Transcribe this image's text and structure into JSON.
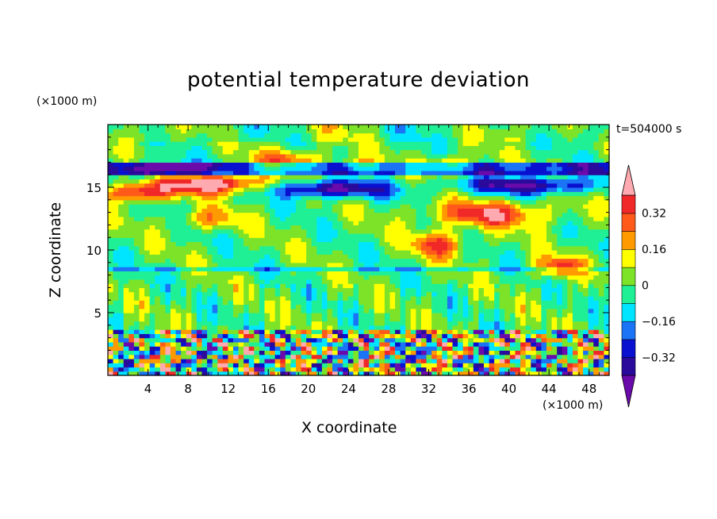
{
  "chart_data": {
    "type": "heatmap",
    "title": "potential temperature deviation",
    "xlabel": "X coordinate",
    "ylabel": "Z coordinate",
    "x_unit": "(×1000 m)",
    "z_unit": "(×1000 m)",
    "time_label": "t=504000 s",
    "xlim": [
      0,
      50
    ],
    "ylim": [
      0,
      20
    ],
    "x_ticks": [
      "4",
      "8",
      "12",
      "16",
      "20",
      "24",
      "28",
      "32",
      "36",
      "40",
      "44",
      "48"
    ],
    "y_ticks": [
      "5",
      "10",
      "15"
    ],
    "colorbar": {
      "labels": [
        "0.32",
        "0.16",
        "0",
        "−0.16",
        "−0.32"
      ],
      "label_values": [
        0.32,
        0.16,
        0,
        -0.16,
        -0.32
      ],
      "levels": [
        -0.4,
        -0.32,
        -0.24,
        -0.16,
        -0.08,
        0,
        0.08,
        0.16,
        0.24,
        0.32,
        0.4
      ],
      "colors": [
        "#6a0aab",
        "#2a0a9a",
        "#0a10d0",
        "#1a74f5",
        "#00e5ff",
        "#20f095",
        "#7de328",
        "#ffff00",
        "#ff9a00",
        "#ff5a1a",
        "#f02828",
        "#ffaab0"
      ],
      "extend": "both"
    }
  }
}
